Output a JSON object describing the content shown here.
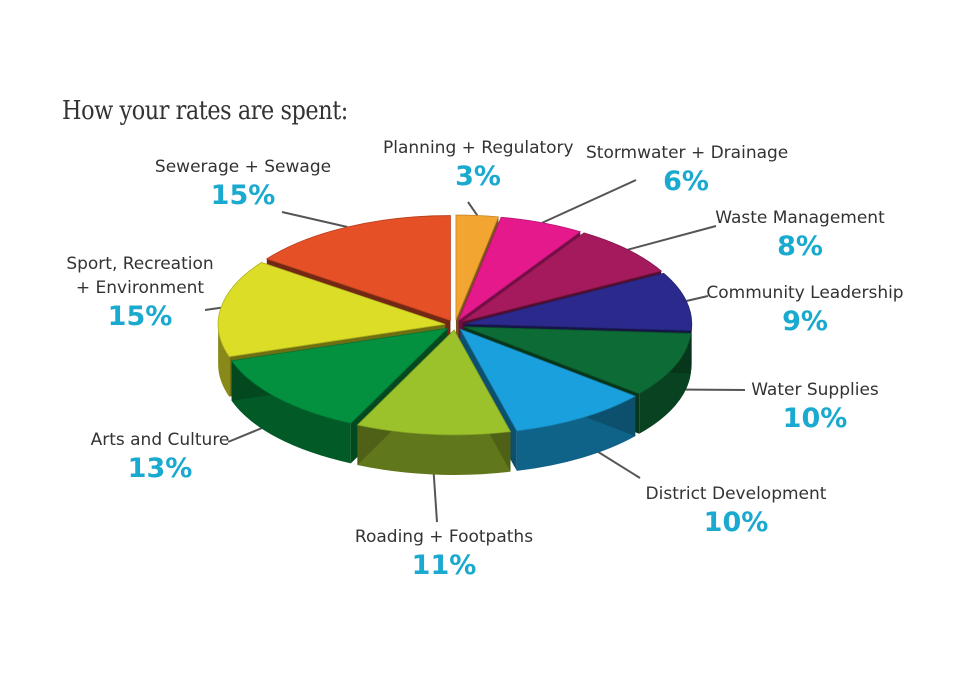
{
  "chart_data": {
    "type": "pie",
    "title": "How your rates are spent:",
    "slices": [
      {
        "label": "Planning + Regulatory",
        "value": 3,
        "value_label": "3%",
        "color": "#f2a531"
      },
      {
        "label": "Stormwater + Drainage",
        "value": 6,
        "value_label": "6%",
        "color": "#e5198c"
      },
      {
        "label": "Waste Management",
        "value": 8,
        "value_label": "8%",
        "color": "#a51a5c"
      },
      {
        "label": "Community Leadership",
        "value": 9,
        "value_label": "9%",
        "color": "#2b2a8c"
      },
      {
        "label": "Water Supplies",
        "value": 10,
        "value_label": "10%",
        "color": "#0d6b35"
      },
      {
        "label": "District Development",
        "value": 10,
        "value_label": "10%",
        "color": "#1aa0dc"
      },
      {
        "label": "Roading + Footpaths",
        "value": 11,
        "value_label": "11%",
        "color": "#9bc22b"
      },
      {
        "label": "Arts and Culture",
        "value": 13,
        "value_label": "13%",
        "color": "#03913f"
      },
      {
        "label": "Sport, Recreation\n+ Environment",
        "value": 15,
        "value_label": "15%",
        "color": "#dcdd26"
      },
      {
        "label": "Sewerage + Sewage",
        "value": 15,
        "value_label": "15%",
        "color": "#e55026"
      }
    ]
  }
}
